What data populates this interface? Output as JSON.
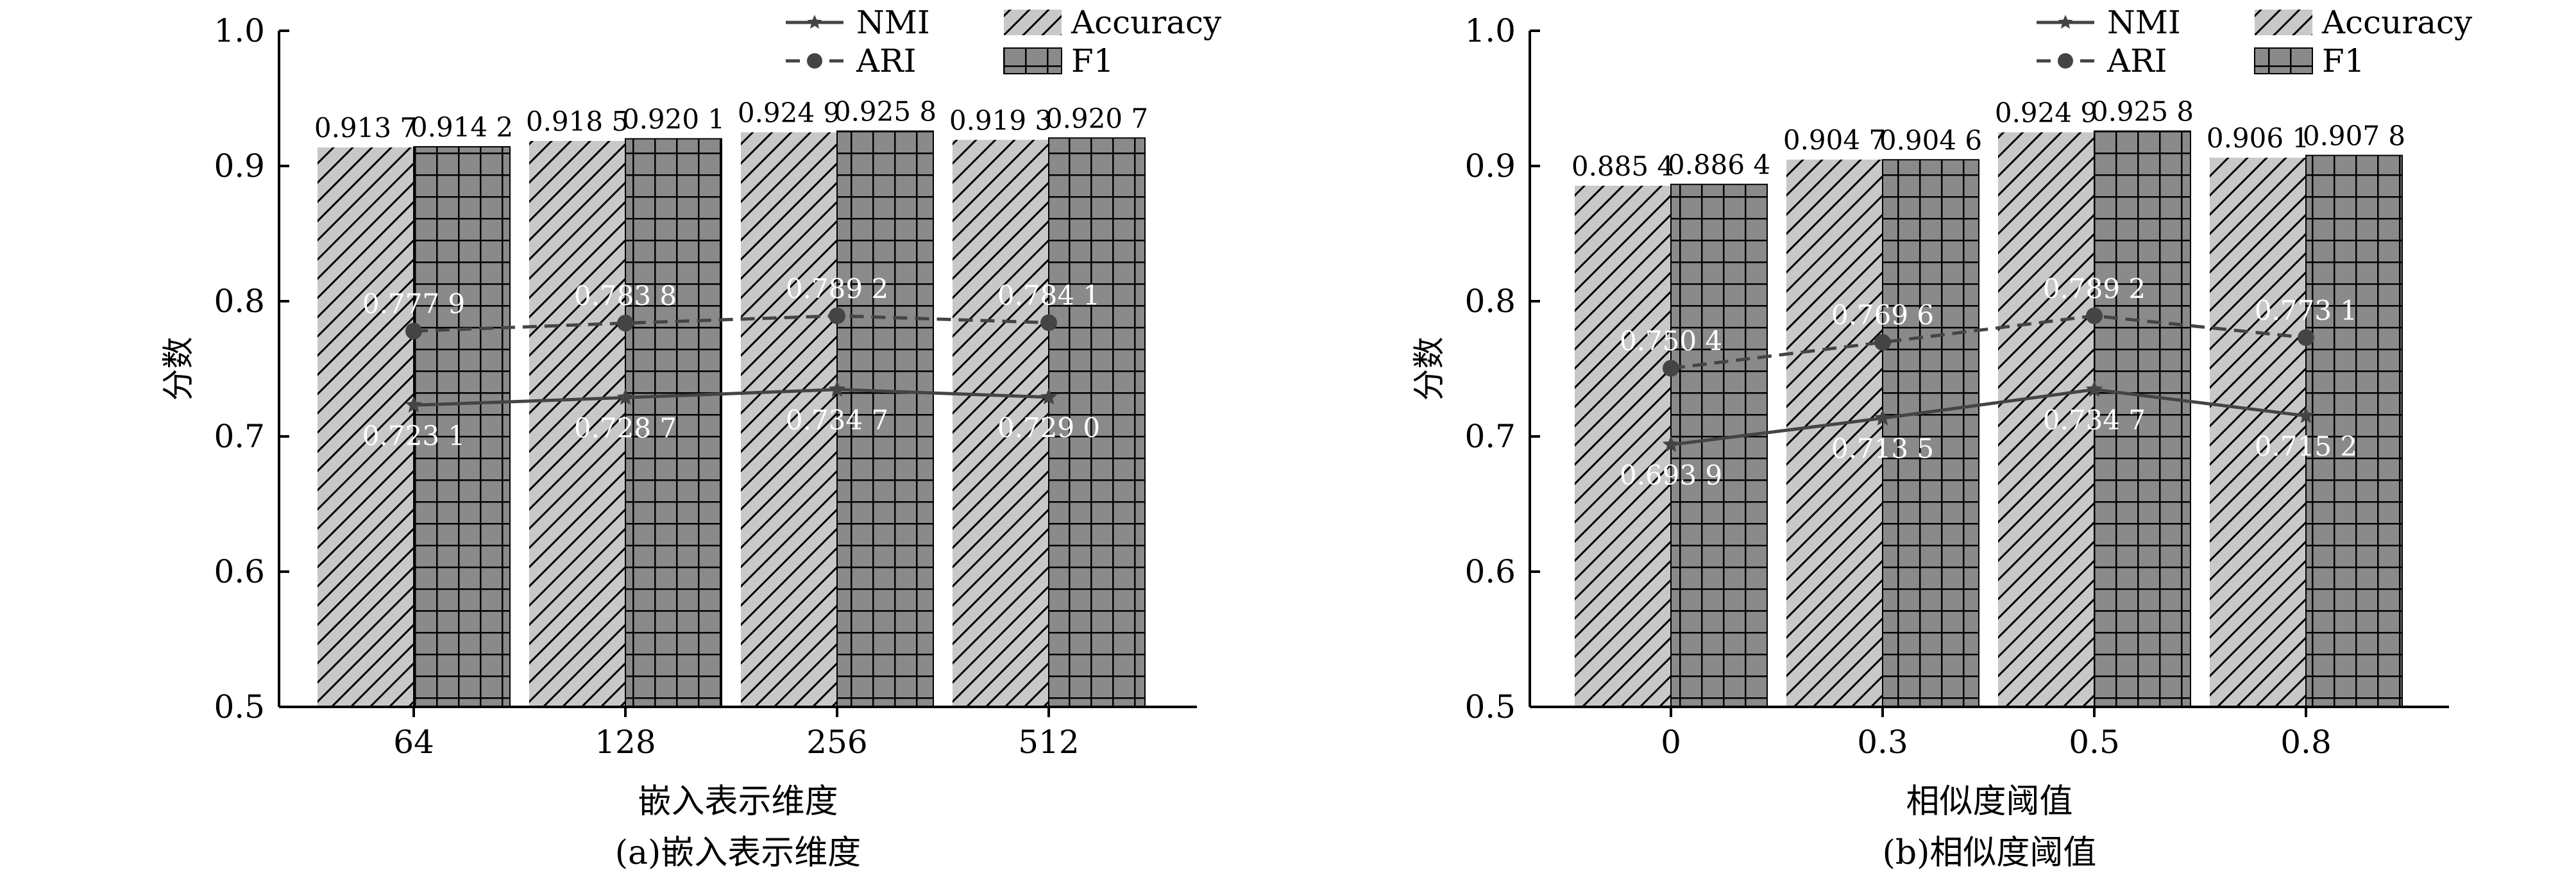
{
  "colors": {
    "accuracy_fill": "#c8c8c8",
    "f1_fill": "#8a8a8a",
    "line": "#444444",
    "axis": "#000000"
  },
  "legend": {
    "nmi": "NMI",
    "ari": "ARI",
    "accuracy": "Accuracy",
    "f1": "F1"
  },
  "chart_data": [
    {
      "type": "bar",
      "caption": "(a)嵌入表示维度",
      "xlabel": "嵌入表示维度",
      "ylabel": "分数",
      "ylim": [
        0.5,
        1.0
      ],
      "yticks": [
        "0.5",
        "0.6",
        "0.7",
        "0.8",
        "0.9",
        "1.0"
      ],
      "categories": [
        "64",
        "128",
        "256",
        "512"
      ],
      "legend_position": "top-right",
      "grid": false,
      "series": [
        {
          "name": "Accuracy",
          "kind": "bar",
          "pattern": "hatch",
          "values": [
            0.9137,
            0.9185,
            0.9249,
            0.9193
          ],
          "labels": [
            "0.913 7",
            "0.918 5",
            "0.924 9",
            "0.919 3"
          ]
        },
        {
          "name": "F1",
          "kind": "bar",
          "pattern": "grid",
          "values": [
            0.9142,
            0.9201,
            0.9258,
            0.9207
          ],
          "labels": [
            "0.914 2",
            "0.920 1",
            "0.925 8",
            "0.920 7"
          ]
        },
        {
          "name": "ARI",
          "kind": "line",
          "style": "dashed",
          "marker": "circle",
          "values": [
            0.7779,
            0.7838,
            0.7892,
            0.7841
          ],
          "labels": [
            "0.777 9",
            "0.783 8",
            "0.789 2",
            "0.784 1"
          ]
        },
        {
          "name": "NMI",
          "kind": "line",
          "style": "solid",
          "marker": "star",
          "values": [
            0.7231,
            0.7287,
            0.7347,
            0.729
          ],
          "labels": [
            "0.723 1",
            "0.728 7",
            "0.734 7",
            "0.729 0"
          ]
        }
      ]
    },
    {
      "type": "bar",
      "caption": "(b)相似度阈值",
      "xlabel": "相似度阈值",
      "ylabel": "分数",
      "ylim": [
        0.5,
        1.0
      ],
      "yticks": [
        "0.5",
        "0.6",
        "0.7",
        "0.8",
        "0.9",
        "1.0"
      ],
      "categories": [
        "0",
        "0.3",
        "0.5",
        "0.8"
      ],
      "legend_position": "top-right",
      "grid": false,
      "series": [
        {
          "name": "Accuracy",
          "kind": "bar",
          "pattern": "hatch",
          "values": [
            0.8854,
            0.9047,
            0.9249,
            0.9061
          ],
          "labels": [
            "0.885 4",
            "0.904 7",
            "0.924 9",
            "0.906 1"
          ]
        },
        {
          "name": "F1",
          "kind": "bar",
          "pattern": "grid",
          "values": [
            0.8864,
            0.9046,
            0.9258,
            0.9078
          ],
          "labels": [
            "0.886 4",
            "0.904 6",
            "0.925 8",
            "0.907 8"
          ]
        },
        {
          "name": "ARI",
          "kind": "line",
          "style": "dashed",
          "marker": "circle",
          "values": [
            0.7504,
            0.7696,
            0.7892,
            0.7731
          ],
          "labels": [
            "0.750 4",
            "0.769 6",
            "0.789 2",
            "0.773 1"
          ]
        },
        {
          "name": "NMI",
          "kind": "line",
          "style": "solid",
          "marker": "star",
          "values": [
            0.6939,
            0.7135,
            0.7347,
            0.7152
          ],
          "labels": [
            "0.693 9",
            "0.713 5",
            "0.734 7",
            "0.715 2"
          ]
        }
      ]
    }
  ]
}
